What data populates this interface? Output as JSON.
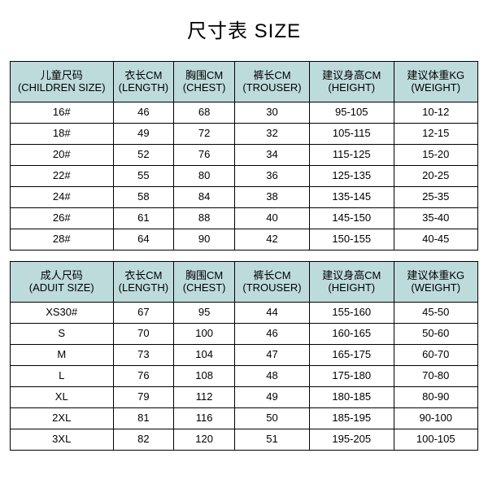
{
  "title": "尺寸表 SIZE",
  "header_bg": "#bedbdc",
  "columns_children": [
    {
      "main": "儿童尺码",
      "sub": "(CHILDREN SIZE)"
    },
    {
      "main": "衣长CM",
      "sub": "(LENGTH)"
    },
    {
      "main": "胸围CM",
      "sub": "(CHEST)"
    },
    {
      "main": "裤长CM",
      "sub": "(TROUSER)"
    },
    {
      "main": "建议身高CM",
      "sub": "(HEIGHT)"
    },
    {
      "main": "建议体重KG",
      "sub": "(WEIGHT)"
    }
  ],
  "rows_children": [
    [
      "16#",
      "46",
      "68",
      "30",
      "95-105",
      "10-12"
    ],
    [
      "18#",
      "49",
      "72",
      "32",
      "105-115",
      "12-15"
    ],
    [
      "20#",
      "52",
      "76",
      "34",
      "115-125",
      "15-20"
    ],
    [
      "22#",
      "55",
      "80",
      "36",
      "125-135",
      "20-25"
    ],
    [
      "24#",
      "58",
      "84",
      "38",
      "135-145",
      "25-35"
    ],
    [
      "26#",
      "61",
      "88",
      "40",
      "145-150",
      "35-40"
    ],
    [
      "28#",
      "64",
      "90",
      "42",
      "150-155",
      "40-45"
    ]
  ],
  "columns_adult": [
    {
      "main": "成人尺码",
      "sub": "(ADUIT SIZE)"
    },
    {
      "main": "衣长CM",
      "sub": "(LENGTH)"
    },
    {
      "main": "胸围CM",
      "sub": "(CHEST)"
    },
    {
      "main": "裤长CM",
      "sub": "(TROUSER)"
    },
    {
      "main": "建议身高CM",
      "sub": "(HEIGHT)"
    },
    {
      "main": "建议体重KG",
      "sub": "(WEIGHT)"
    }
  ],
  "rows_adult": [
    [
      "XS30#",
      "67",
      "95",
      "44",
      "155-160",
      "45-50"
    ],
    [
      "S",
      "70",
      "100",
      "46",
      "160-165",
      "50-60"
    ],
    [
      "M",
      "73",
      "104",
      "47",
      "165-175",
      "60-70"
    ],
    [
      "L",
      "76",
      "108",
      "48",
      "175-180",
      "70-80"
    ],
    [
      "XL",
      "79",
      "112",
      "49",
      "180-185",
      "80-90"
    ],
    [
      "2XL",
      "81",
      "116",
      "50",
      "185-195",
      "90-100"
    ],
    [
      "3XL",
      "82",
      "120",
      "51",
      "195-205",
      "100-105"
    ]
  ]
}
